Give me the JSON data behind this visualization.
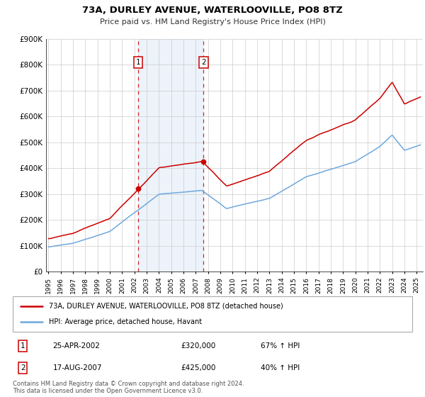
{
  "title": "73A, DURLEY AVENUE, WATERLOOVILLE, PO8 8TZ",
  "subtitle": "Price paid vs. HM Land Registry's House Price Index (HPI)",
  "ylim": [
    0,
    900000
  ],
  "yticks": [
    0,
    100000,
    200000,
    300000,
    400000,
    500000,
    600000,
    700000,
    800000,
    900000
  ],
  "ytick_labels": [
    "£0",
    "£100K",
    "£200K",
    "£300K",
    "£400K",
    "£500K",
    "£600K",
    "£700K",
    "£800K",
    "£900K"
  ],
  "xlim_start": 1994.8,
  "xlim_end": 2025.5,
  "xticks": [
    1995,
    1996,
    1997,
    1998,
    1999,
    2000,
    2001,
    2002,
    2003,
    2004,
    2005,
    2006,
    2007,
    2008,
    2009,
    2010,
    2011,
    2012,
    2013,
    2014,
    2015,
    2016,
    2017,
    2018,
    2019,
    2020,
    2021,
    2022,
    2023,
    2024,
    2025
  ],
  "hpi_color": "#6fa8dc",
  "price_color": "#cc0000",
  "sale1_date": 2002.31,
  "sale1_price": 320000,
  "sale1_label": "1",
  "sale2_date": 2007.63,
  "sale2_price": 425000,
  "sale2_label": "2",
  "shade_start": 2002.31,
  "shade_end": 2007.63,
  "legend_line1": "73A, DURLEY AVENUE, WATERLOOVILLE, PO8 8TZ (detached house)",
  "legend_line2": "HPI: Average price, detached house, Havant",
  "table_row1": [
    "1",
    "25-APR-2002",
    "£320,000",
    "67% ↑ HPI"
  ],
  "table_row2": [
    "2",
    "17-AUG-2007",
    "£425,000",
    "40% ↑ HPI"
  ],
  "footnote": "Contains HM Land Registry data © Crown copyright and database right 2024.\nThis data is licensed under the Open Government Licence v3.0.",
  "background_color": "#ffffff",
  "grid_color": "#cccccc"
}
